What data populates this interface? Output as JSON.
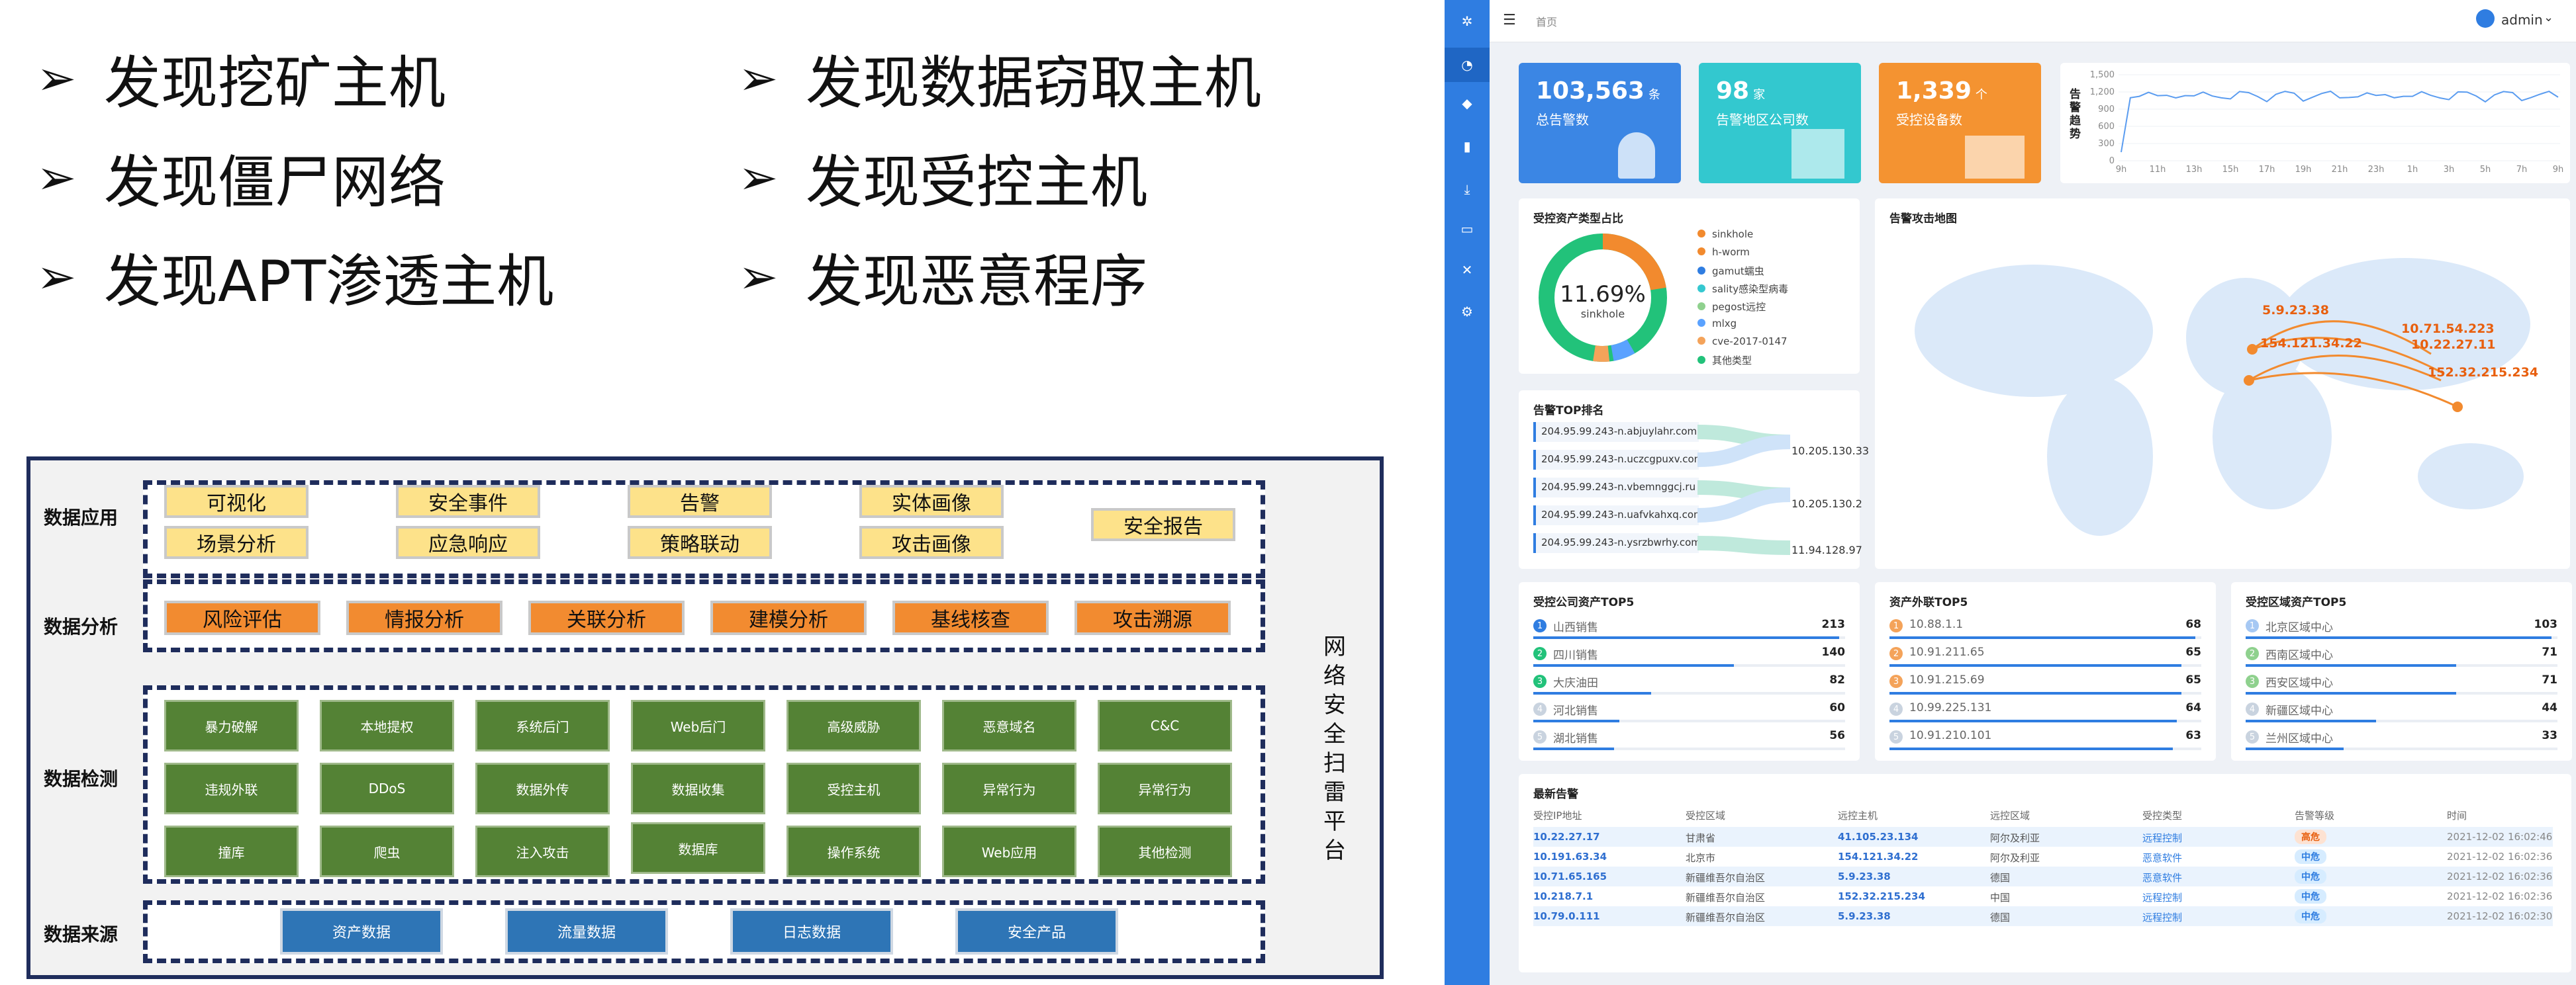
{
  "bullets": {
    "left": [
      "发现挖矿主机",
      "发现僵尸网络",
      "发现APT渗透主机"
    ],
    "right": [
      "发现数据窃取主机",
      "发现受控主机",
      "发现恶意程序"
    ],
    "arrow": "➢"
  },
  "architecture": {
    "side_label": [
      "网",
      "络",
      "安",
      "全",
      "扫",
      "雷",
      "平",
      "台"
    ],
    "rows": {
      "app": {
        "label": "数据应用",
        "items": [
          "可视化",
          "场景分析",
          "安全事件",
          "应急响应",
          "告警",
          "策略联动",
          "实体画像",
          "攻击画像",
          "安全报告"
        ]
      },
      "analysis": {
        "label": "数据分析",
        "items": [
          "风险评估",
          "情报分析",
          "关联分析",
          "建模分析",
          "基线核查",
          "攻击溯源"
        ]
      },
      "detect": {
        "label": "数据检测",
        "items": [
          "暴力破解",
          "本地提权",
          "系统后门",
          "Web后门",
          "高级威胁",
          "恶意域名",
          "C&C",
          "违规外联",
          "DDoS",
          "数据外传",
          "数据收集",
          "受控主机",
          "异常行为",
          "异常行为",
          "撞库",
          "爬虫",
          "注入攻击",
          "数据库",
          "操作系统",
          "Web应用",
          "其他检测"
        ]
      },
      "source": {
        "label": "数据来源",
        "items": [
          "资产数据",
          "流量数据",
          "日志数据",
          "安全产品"
        ]
      }
    }
  },
  "dashboard": {
    "breadcrumb": "首页",
    "user": "admin",
    "kpis": [
      {
        "value": "103,563",
        "unit": "条",
        "label": "总告警数",
        "color": "#3b86e4"
      },
      {
        "value": "98",
        "unit": "家",
        "label": "告警地区公司数",
        "color": "#33c8cf"
      },
      {
        "value": "1,339",
        "unit": "个",
        "label": "受控设备数",
        "color": "#f49331"
      }
    ],
    "trend": {
      "title": "告警趋势",
      "yticks": [
        "1,500",
        "1,200",
        "900",
        "600",
        "300",
        "0"
      ],
      "xticks": [
        "9h",
        "11h",
        "13h",
        "15h",
        "17h",
        "19h",
        "21h",
        "23h",
        "1h",
        "3h",
        "5h",
        "7h",
        "9h"
      ]
    },
    "donut": {
      "title": "受控资产类型占比",
      "center_value": "11.69%",
      "center_label": "sinkhole",
      "legend": [
        "sinkhole",
        "h-worm",
        "gamut蠕虫",
        "sality感染型病毒",
        "pegost远控",
        "mlxg",
        "cve-2017-0147",
        "其他类型"
      ],
      "colors": [
        "#f28a2e",
        "#f28a2e",
        "#2f7de1",
        "#35c8d0",
        "#8fd18e",
        "#5aa2ff",
        "#f4a35a",
        "#22c27a"
      ]
    },
    "map": {
      "title": "告警攻击地图",
      "labels": [
        "5.9.23.38",
        "154.121.34.22",
        "10.71.54.223",
        "10.22.27.11",
        "152.32.215.234"
      ]
    },
    "top_rank": {
      "title": "告警TOP排名",
      "left": [
        "204.95.99.243-n.abjuylahr.com",
        "204.95.99.243-n.uczcgpuxv.com",
        "204.95.99.243-n.vbemnggcj.ru",
        "204.95.99.243-n.uafvkahxq.com",
        "204.95.99.243-n.ysrzbwrhy.com"
      ],
      "right": [
        "10.205.130.33",
        "10.205.130.2",
        "11.94.128.97"
      ]
    },
    "top5_company": {
      "title": "受控公司资产TOP5",
      "rows": [
        [
          "山西销售",
          "213"
        ],
        [
          "四川销售",
          "140"
        ],
        [
          "大庆油田",
          "82"
        ],
        [
          "河北销售",
          "60"
        ],
        [
          "湖北销售",
          "56"
        ]
      ]
    },
    "top5_outbound": {
      "title": "资产外联TOP5",
      "rows": [
        [
          "10.88.1.1",
          "68"
        ],
        [
          "10.91.211.65",
          "65"
        ],
        [
          "10.91.215.69",
          "65"
        ],
        [
          "10.99.225.131",
          "64"
        ],
        [
          "10.91.210.101",
          "63"
        ]
      ]
    },
    "top5_region": {
      "title": "受控区域资产TOP5",
      "rows": [
        [
          "北京区域中心",
          "103"
        ],
        [
          "西南区域中心",
          "71"
        ],
        [
          "西安区域中心",
          "71"
        ],
        [
          "新疆区域中心",
          "44"
        ],
        [
          "兰州区域中心",
          "33"
        ]
      ]
    },
    "latest": {
      "title": "最新告警",
      "headers": [
        "受控IP地址",
        "受控区域",
        "远控主机",
        "远控区域",
        "受控类型",
        "告警等级",
        "时间"
      ],
      "rows": [
        [
          "10.22.27.17",
          "甘肃省",
          "41.105.23.134",
          "阿尔及利亚",
          "远程控制",
          "高危",
          "2021-12-02 16:02:46"
        ],
        [
          "10.191.63.34",
          "北京市",
          "154.121.34.22",
          "阿尔及利亚",
          "恶意软件",
          "中危",
          "2021-12-02 16:02:36"
        ],
        [
          "10.71.65.165",
          "新疆维吾尔自治区",
          "5.9.23.38",
          "德国",
          "恶意软件",
          "中危",
          "2021-12-02 16:02:36"
        ],
        [
          "10.218.7.1",
          "新疆维吾尔自治区",
          "152.32.215.234",
          "中国",
          "远程控制",
          "中危",
          "2021-12-02 16:02:36"
        ],
        [
          "10.79.0.111",
          "新疆维吾尔自治区",
          "5.9.23.38",
          "德国",
          "远程控制",
          "中危",
          "2021-12-02 16:02:30"
        ]
      ]
    }
  }
}
